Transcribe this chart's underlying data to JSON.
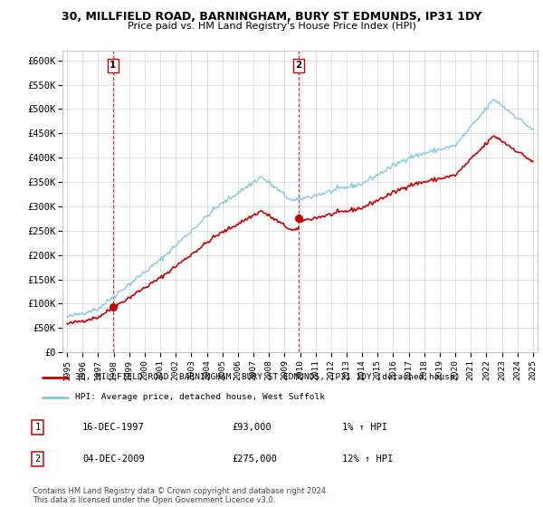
{
  "title_line1": "30, MILLFIELD ROAD, BARNINGHAM, BURY ST EDMUNDS, IP31 1DY",
  "title_line2": "Price paid vs. HM Land Registry's House Price Index (HPI)",
  "ylabel_ticks": [
    "£0",
    "£50K",
    "£100K",
    "£150K",
    "£200K",
    "£250K",
    "£300K",
    "£350K",
    "£400K",
    "£450K",
    "£500K",
    "£550K",
    "£600K"
  ],
  "ytick_values": [
    0,
    50000,
    100000,
    150000,
    200000,
    250000,
    300000,
    350000,
    400000,
    450000,
    500000,
    550000,
    600000
  ],
  "xlim": [
    1994.7,
    2025.3
  ],
  "ylim": [
    0,
    620000
  ],
  "hpi_color": "#7ec8e3",
  "price_color": "#cc0000",
  "transaction1_date": 1997.96,
  "transaction1_price": 93000,
  "transaction2_date": 2009.92,
  "transaction2_price": 275000,
  "legend_line1": "30, MILLFIELD ROAD, BARNINGHAM, BURY ST EDMUNDS, IP31 1DY (detached house)",
  "legend_line2": "HPI: Average price, detached house, West Suffolk",
  "annotation1_date": "16-DEC-1997",
  "annotation1_price": "£93,000",
  "annotation1_hpi": "1% ↑ HPI",
  "annotation2_date": "04-DEC-2009",
  "annotation2_price": "£275,000",
  "annotation2_hpi": "12% ↑ HPI",
  "footer": "Contains HM Land Registry data © Crown copyright and database right 2024.\nThis data is licensed under the Open Government Licence v3.0.",
  "background_color": "#ffffff",
  "grid_color": "#dddddd"
}
